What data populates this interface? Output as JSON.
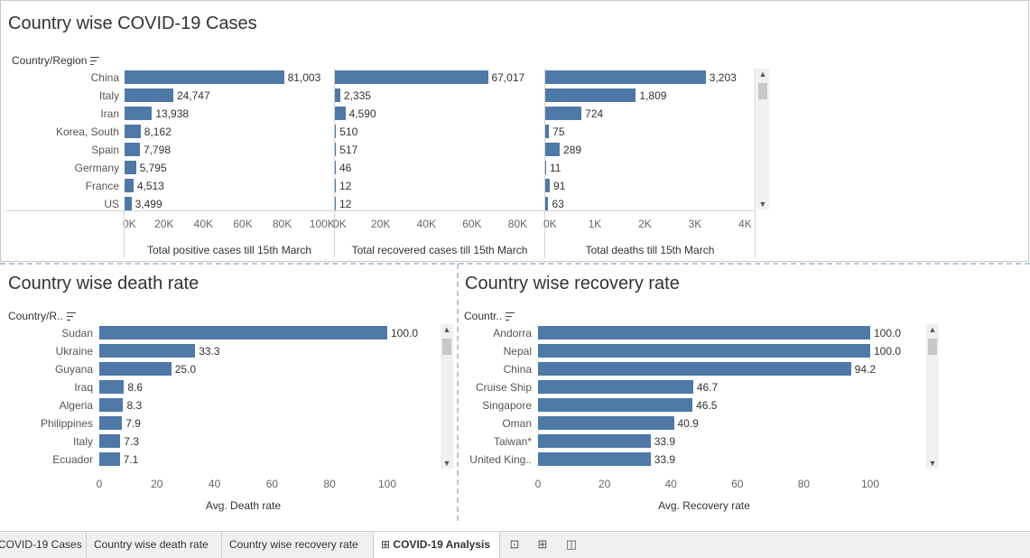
{
  "top": {
    "title": "Country wise COVID-19 Cases",
    "row_header": "Country/Region",
    "countries": [
      "China",
      "Italy",
      "Iran",
      "Korea, South",
      "Spain",
      "Germany",
      "France",
      "US"
    ],
    "panels": [
      {
        "axis_title": "Total positive cases till 15th March",
        "values": [
          81003,
          24747,
          13938,
          8162,
          7798,
          5795,
          4513,
          3499
        ],
        "labels": [
          "81,003",
          "24,747",
          "13,938",
          "8,162",
          "7,798",
          "5,795",
          "4,513",
          "3,499"
        ],
        "max": 100000,
        "ticks": [
          "0K",
          "20K",
          "40K",
          "60K",
          "80K",
          "100K"
        ]
      },
      {
        "axis_title": "Total recovered cases till 15th March",
        "values": [
          67017,
          2335,
          4590,
          510,
          517,
          46,
          12,
          12
        ],
        "labels": [
          "67,017",
          "2,335",
          "4,590",
          "510",
          "517",
          "46",
          "12",
          "12"
        ],
        "max": 85000,
        "ticks": [
          "0K",
          "20K",
          "40K",
          "60K",
          "80K"
        ]
      },
      {
        "axis_title": "Total deaths till 15th March",
        "values": [
          3203,
          1809,
          724,
          75,
          289,
          11,
          91,
          63
        ],
        "labels": [
          "3,203",
          "1,809",
          "724",
          "75",
          "289",
          "11",
          "91",
          "63"
        ],
        "max": 4000,
        "ticks": [
          "0K",
          "1K",
          "2K",
          "3K",
          "4K"
        ]
      }
    ]
  },
  "death": {
    "title": "Country wise death rate",
    "row_header": "Country/R..",
    "axis_title": "Avg. Death rate",
    "categories": [
      "Sudan",
      "Ukraine",
      "Guyana",
      "Iraq",
      "Algeria",
      "Philippines",
      "Italy",
      "Ecuador"
    ],
    "values": [
      100.0,
      33.3,
      25.0,
      8.6,
      8.3,
      7.9,
      7.3,
      7.1
    ],
    "labels": [
      "100.0",
      "33.3",
      "25.0",
      "8.6",
      "8.3",
      "7.9",
      "7.3",
      "7.1"
    ],
    "ticks": [
      "0",
      "20",
      "40",
      "60",
      "80",
      "100"
    ]
  },
  "recovery": {
    "title": "Country wise recovery rate",
    "row_header": "Countr..",
    "axis_title": "Avg. Recovery rate",
    "categories": [
      "Andorra",
      "Nepal",
      "China",
      "Cruise Ship",
      "Singapore",
      "Oman",
      "Taiwan*",
      "United King.."
    ],
    "values": [
      100.0,
      100.0,
      94.2,
      46.7,
      46.5,
      40.9,
      33.9,
      33.9
    ],
    "labels": [
      "100.0",
      "100.0",
      "94.2",
      "46.7",
      "46.5",
      "40.9",
      "33.9",
      "33.9"
    ],
    "ticks": [
      "0",
      "20",
      "40",
      "60",
      "80",
      "100"
    ]
  },
  "tabs": [
    {
      "label": "COVID-19 Cases",
      "active": false
    },
    {
      "label": "Country wise death rate",
      "active": false
    },
    {
      "label": "Country wise recovery rate",
      "active": false
    },
    {
      "label": "COVID-19 Analysis",
      "active": true
    }
  ],
  "tab_icons": [
    "new-worksheet-icon",
    "new-dashboard-icon",
    "new-story-icon"
  ],
  "colors": {
    "bar": "#4e79a7"
  }
}
